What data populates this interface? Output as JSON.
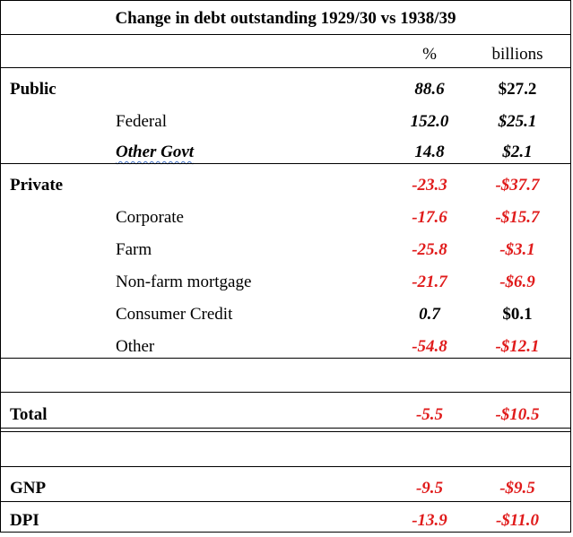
{
  "title": "Change in debt outstanding 1929/30 vs 1938/39",
  "headers": {
    "pct": "%",
    "billions": "billions"
  },
  "rows": [
    {
      "label": "Public",
      "pct": "88.6",
      "billions": "$27.2"
    },
    {
      "label": "Federal",
      "pct": "152.0",
      "billions": "$25.1"
    },
    {
      "label": "Other Govt",
      "pct": "14.8",
      "billions": "$2.1"
    },
    {
      "label": "Private",
      "pct": "-23.3",
      "billions": "-$37.7"
    },
    {
      "label": "Corporate",
      "pct": "-17.6",
      "billions": "-$15.7"
    },
    {
      "label": "Farm",
      "pct": "-25.8",
      "billions": "-$3.1"
    },
    {
      "label": "Non-farm mortgage",
      "pct": "-21.7",
      "billions": "-$6.9"
    },
    {
      "label": "Consumer Credit",
      "pct": "0.7",
      "billions": "$0.1"
    },
    {
      "label": "Other",
      "pct": "-54.8",
      "billions": "-$12.1"
    },
    {
      "label": "Total",
      "pct": "-5.5",
      "billions": "-$10.5"
    },
    {
      "label": "GNP",
      "pct": "-9.5",
      "billions": "-$9.5"
    },
    {
      "label": "DPI",
      "pct": "-13.9",
      "billions": "-$11.0"
    }
  ],
  "colors": {
    "negative": "#e01b1b",
    "positive": "#000000",
    "spellcheck_underline": "#4472c4"
  }
}
